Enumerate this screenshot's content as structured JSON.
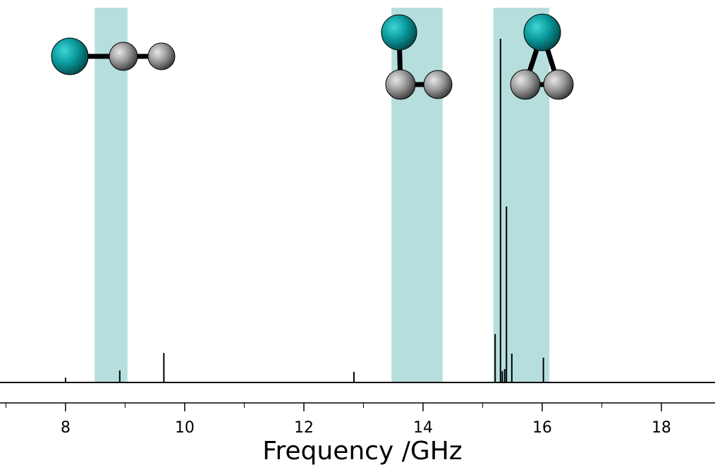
{
  "chart_data": {
    "type": "stick",
    "x_label": "Frequency /GHz",
    "x": [
      8.0,
      8.91,
      9.65,
      12.84,
      15.21,
      15.3,
      15.33,
      15.37,
      15.4,
      15.49,
      16.02
    ],
    "values": [
      1.4,
      3.5,
      8.6,
      3.1,
      14.1,
      100,
      3.3,
      3.9,
      51.2,
      8.4,
      7.2
    ],
    "color": "#000000",
    "xlim": [
      6.9,
      18.9
    ],
    "ylim": [
      0,
      100
    ],
    "xticks": [
      8,
      10,
      12,
      14,
      16,
      18
    ],
    "minor_xticks": [
      7,
      9,
      11,
      13,
      15,
      17
    ],
    "bands": [
      [
        8.49,
        9.04
      ],
      [
        13.47,
        14.33
      ],
      [
        15.18,
        16.12
      ]
    ],
    "band_color": "#b6dedd"
  }
}
